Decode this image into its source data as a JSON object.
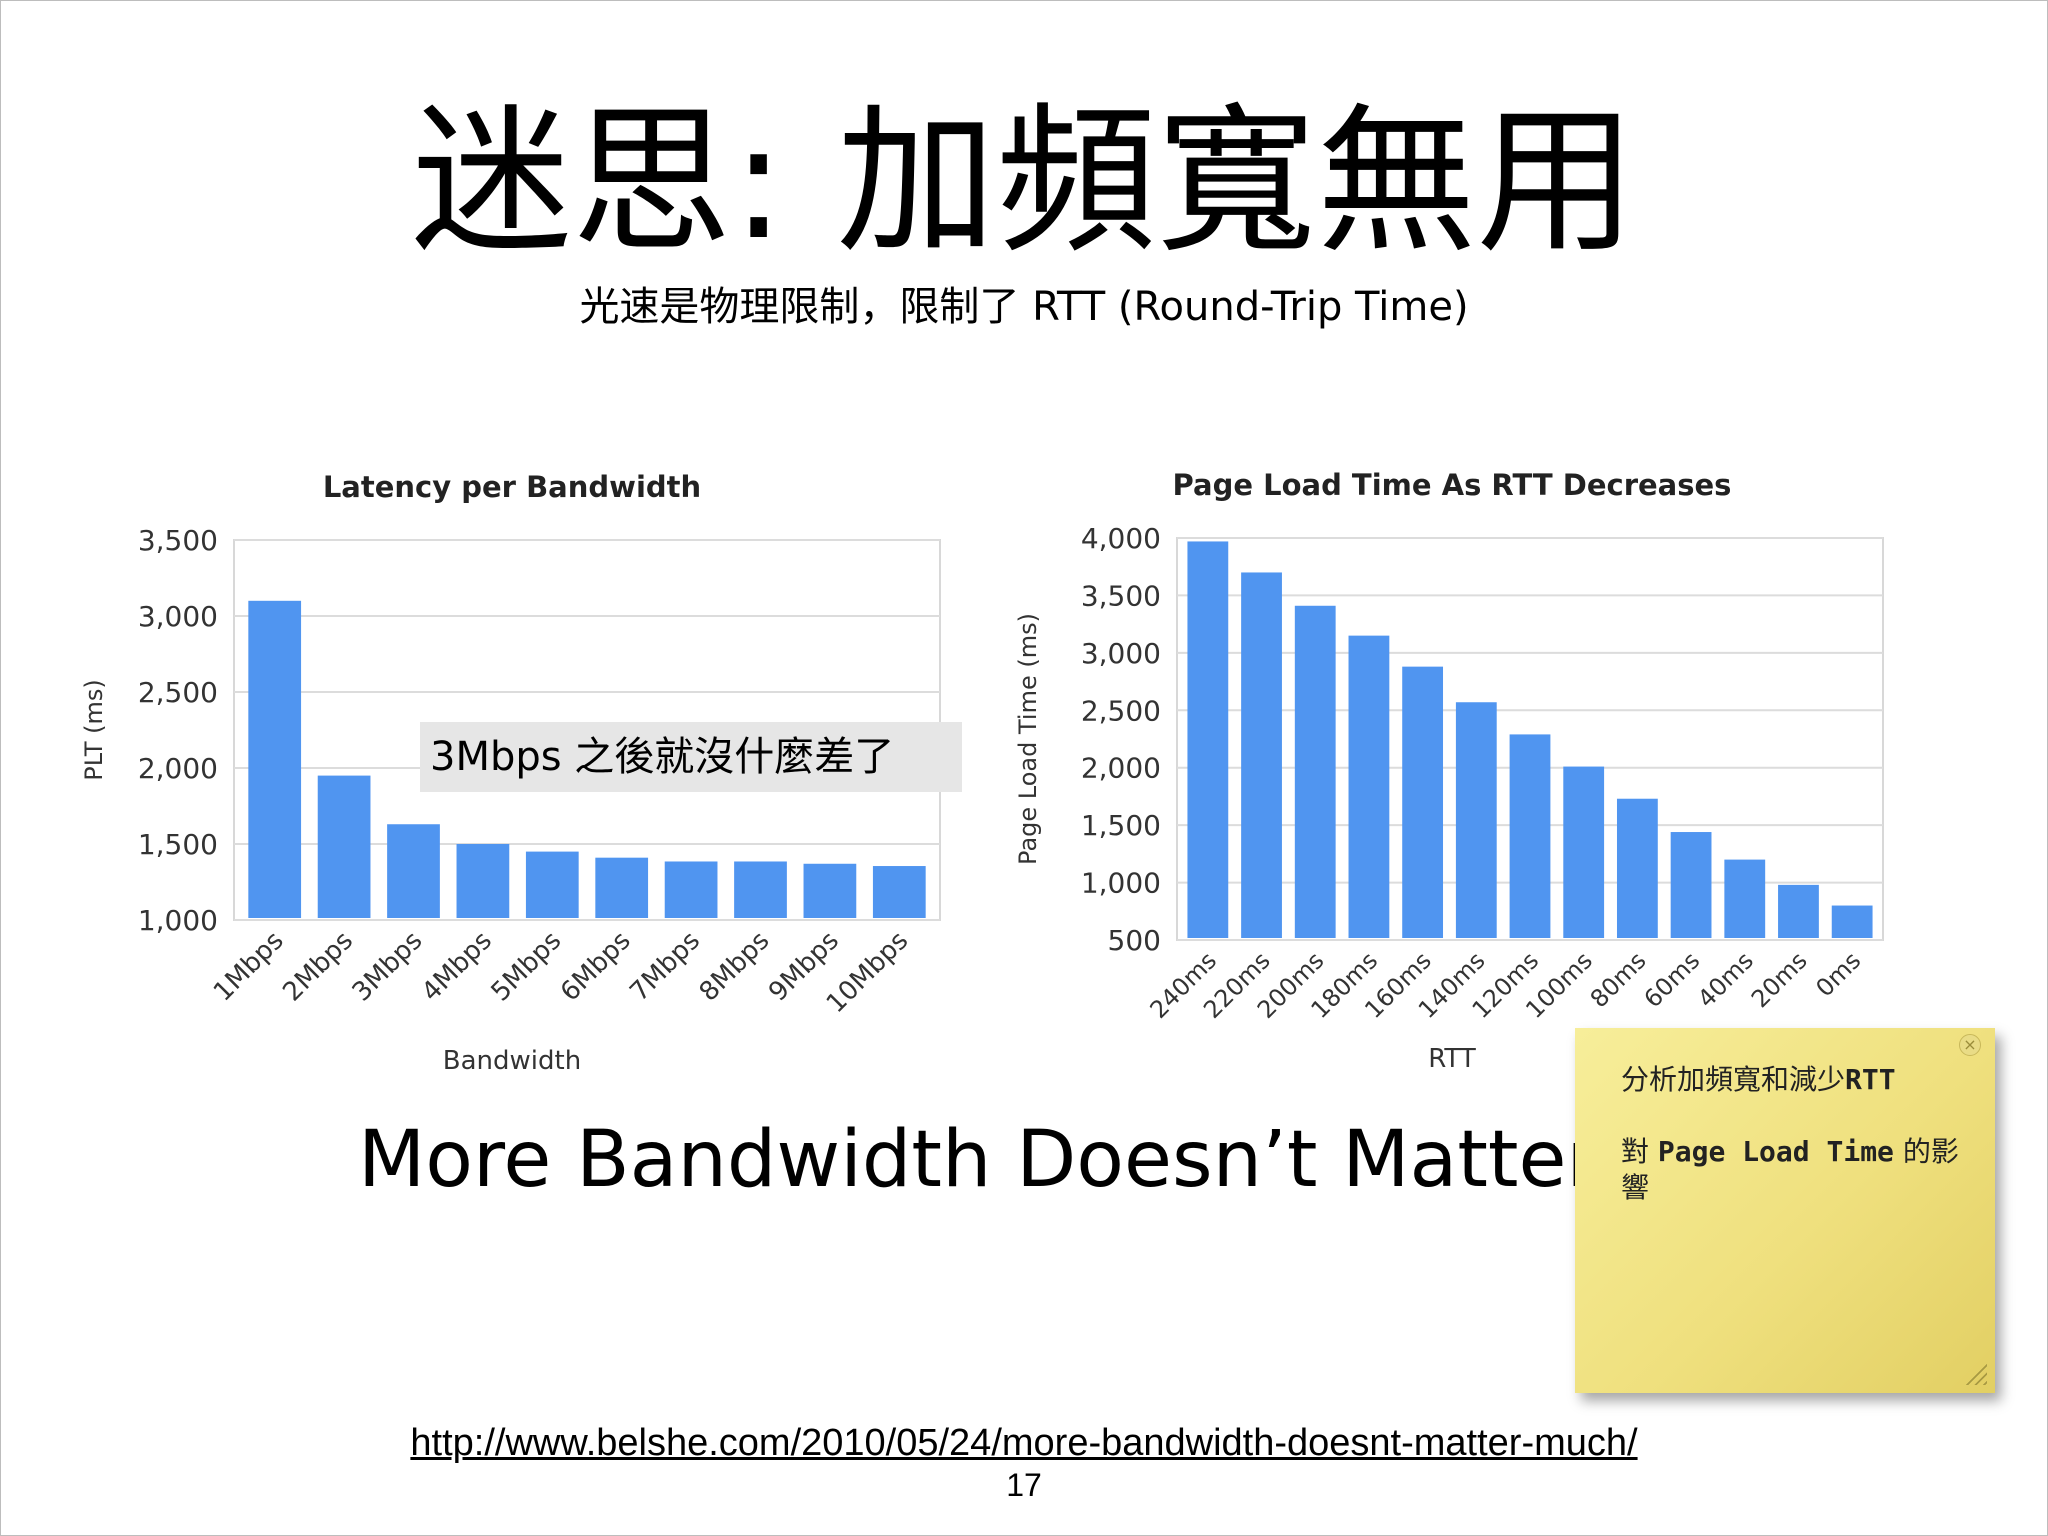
{
  "slide": {
    "title": "迷思: 加頻寬無用",
    "subtitle": "光速是物理限制，限制了 RTT (Round-Trip Time)",
    "note_box": "3Mbps 之後就沒什麼差了",
    "big_text": "More Bandwidth Doesn’t Matter (M",
    "url": "http://www.belshe.com/2010/05/24/more-bandwidth-doesnt-matter-much/",
    "page_number": "17"
  },
  "sticky_note": {
    "line1_prefix": "分析加頻寬和減少",
    "line1_bold": "RTT",
    "line2_prefix": "對 ",
    "line2_bold": "Page Load Time",
    "line2_suffix": " 的影響",
    "close_icon": "close-icon",
    "resize_icon": "resize-grip-icon"
  },
  "chart_data": [
    {
      "type": "bar",
      "title": "Latency per Bandwidth",
      "xlabel": "Bandwidth",
      "ylabel": "PLT (ms)",
      "categories": [
        "1Mbps",
        "2Mbps",
        "3Mbps",
        "4Mbps",
        "5Mbps",
        "6Mbps",
        "7Mbps",
        "8Mbps",
        "9Mbps",
        "10Mbps"
      ],
      "values": [
        3100,
        1950,
        1630,
        1500,
        1450,
        1410,
        1385,
        1385,
        1370,
        1355
      ],
      "ylim": [
        1000,
        3500
      ],
      "yticks": [
        1000,
        1500,
        2000,
        2500,
        3000,
        3500
      ],
      "ytick_labels": [
        "1,000",
        "1,500",
        "2,000",
        "2,500",
        "3,000",
        "3,500"
      ],
      "grid": true,
      "color": "#5095f0"
    },
    {
      "type": "bar",
      "title": "Page Load Time As RTT Decreases",
      "xlabel": "RTT",
      "ylabel": "Page Load Time (ms)",
      "categories": [
        "240ms",
        "220ms",
        "200ms",
        "180ms",
        "160ms",
        "140ms",
        "120ms",
        "100ms",
        "80ms",
        "60ms",
        "40ms",
        "20ms",
        "0ms"
      ],
      "values": [
        3970,
        3700,
        3410,
        3150,
        2880,
        2570,
        2290,
        2010,
        1730,
        1440,
        1200,
        980,
        800
      ],
      "ylim": [
        500,
        4000
      ],
      "yticks": [
        500,
        1000,
        1500,
        2000,
        2500,
        3000,
        3500,
        4000
      ],
      "ytick_labels": [
        "500",
        "1,000",
        "1,500",
        "2,000",
        "2,500",
        "3,000",
        "3,500",
        "4,000"
      ],
      "grid": true,
      "color": "#5095f0"
    }
  ]
}
